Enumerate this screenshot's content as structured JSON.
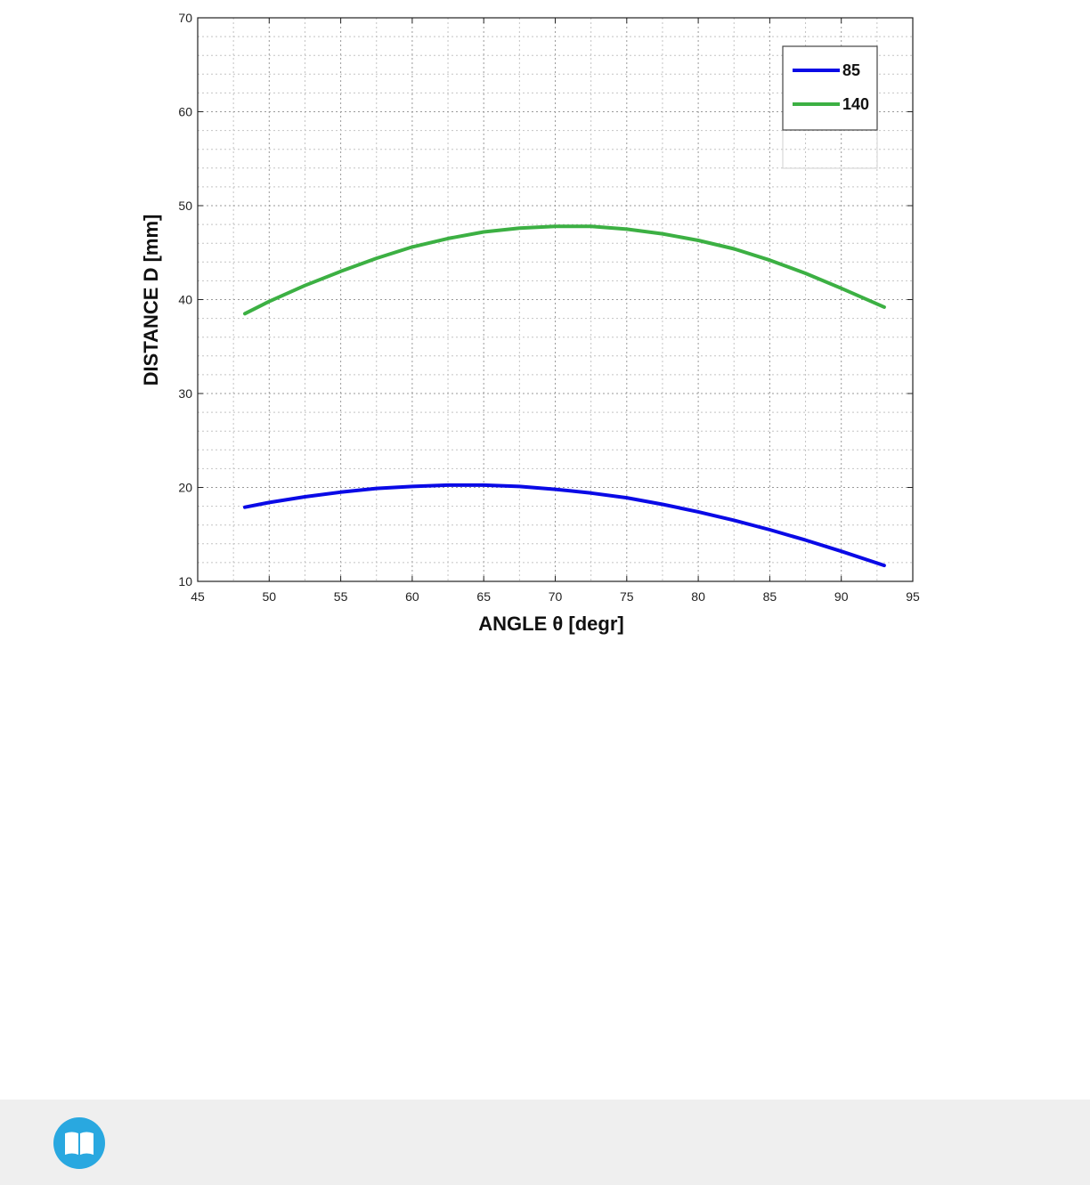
{
  "chart_data": {
    "type": "line",
    "xlabel": "ANGLE θ [degr]",
    "ylabel": "DISTANCE D  [mm]",
    "xlim": [
      45,
      95
    ],
    "ylim": [
      10,
      70
    ],
    "xticks": [
      45,
      50,
      55,
      60,
      65,
      70,
      75,
      80,
      85,
      90,
      95
    ],
    "yticks": [
      10,
      20,
      30,
      40,
      50,
      60,
      70
    ],
    "grid": true,
    "legend_position": "top-right",
    "series": [
      {
        "name": "85",
        "color": "#0a0ae6",
        "x": [
          48.3,
          50,
          52.5,
          55,
          57.5,
          60,
          62.5,
          65,
          67.5,
          70,
          72.5,
          75,
          77.5,
          80,
          82.5,
          85,
          87.5,
          90,
          93
        ],
        "y": [
          17.9,
          18.4,
          19.0,
          19.5,
          19.9,
          20.1,
          20.25,
          20.25,
          20.1,
          19.8,
          19.4,
          18.9,
          18.2,
          17.4,
          16.5,
          15.5,
          14.4,
          13.2,
          11.7
        ]
      },
      {
        "name": "140",
        "color": "#3cb043",
        "x": [
          48.3,
          50,
          52.5,
          55,
          57.5,
          60,
          62.5,
          65,
          67.5,
          70,
          72.5,
          75,
          77.5,
          80,
          82.5,
          85,
          87.5,
          90,
          93
        ],
        "y": [
          38.5,
          39.8,
          41.5,
          43.0,
          44.4,
          45.6,
          46.5,
          47.2,
          47.6,
          47.8,
          47.8,
          47.5,
          47.0,
          46.3,
          45.4,
          44.2,
          42.8,
          41.2,
          39.2
        ]
      }
    ]
  },
  "footer": {
    "icon": "book-icon",
    "accent_color": "#29a8e0"
  }
}
